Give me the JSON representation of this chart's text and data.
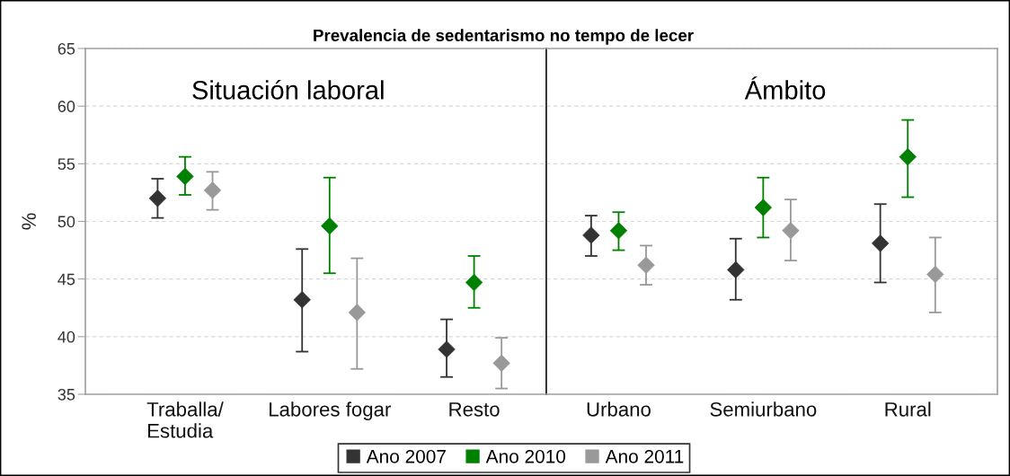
{
  "chart_data": [
    {
      "type": "scatter",
      "title": "Prevalencia de sedentarismo no tempo de lecer",
      "ylabel": "%",
      "annotations": [
        "Situación laboral"
      ],
      "categories": [
        "Traballa/\nEstudia",
        "Labores fogar",
        "Resto"
      ],
      "series": [
        {
          "name": "Ano 2007",
          "color": "#333333",
          "values": [
            52.0,
            43.2,
            38.9
          ],
          "errors": [
            [
              50.3,
              53.7
            ],
            [
              38.7,
              47.6
            ],
            [
              36.5,
              41.5
            ]
          ]
        },
        {
          "name": "Ano 2010",
          "color": "#008000",
          "values": [
            53.9,
            49.6,
            44.7
          ],
          "errors": [
            [
              52.3,
              55.6
            ],
            [
              45.5,
              53.8
            ],
            [
              42.5,
              47.0
            ]
          ]
        },
        {
          "name": "Ano 2011",
          "color": "#999999",
          "values": [
            52.7,
            42.1,
            37.7
          ],
          "errors": [
            [
              51.0,
              54.3
            ],
            [
              37.2,
              46.8
            ],
            [
              35.5,
              39.9
            ]
          ]
        }
      ],
      "ylim": [
        35,
        65
      ],
      "yticks": [
        35,
        40,
        45,
        50,
        55,
        60,
        65
      ],
      "grid": "y",
      "legend": "bottom",
      "marker": "diamond"
    },
    {
      "type": "scatter",
      "annotations": [
        "Ámbito"
      ],
      "categories": [
        "Urbano",
        "Semiurbano",
        "Rural"
      ],
      "series": [
        {
          "name": "Ano 2007",
          "color": "#333333",
          "values": [
            48.8,
            45.8,
            48.1
          ],
          "errors": [
            [
              47.0,
              50.5
            ],
            [
              43.2,
              48.5
            ],
            [
              44.7,
              51.5
            ]
          ]
        },
        {
          "name": "Ano 2010",
          "color": "#008000",
          "values": [
            49.2,
            51.2,
            55.6
          ],
          "errors": [
            [
              47.5,
              50.8
            ],
            [
              48.6,
              53.8
            ],
            [
              52.1,
              58.8
            ]
          ]
        },
        {
          "name": "Ano 2011",
          "color": "#999999",
          "values": [
            46.2,
            49.2,
            45.4
          ],
          "errors": [
            [
              44.5,
              47.9
            ],
            [
              46.6,
              51.9
            ],
            [
              42.1,
              48.6
            ]
          ]
        }
      ],
      "ylim": [
        35,
        65
      ],
      "yticks": [
        35,
        40,
        45,
        50,
        55,
        60,
        65
      ],
      "tick_labels": "x",
      "grid": "y",
      "marker": "diamond"
    }
  ]
}
